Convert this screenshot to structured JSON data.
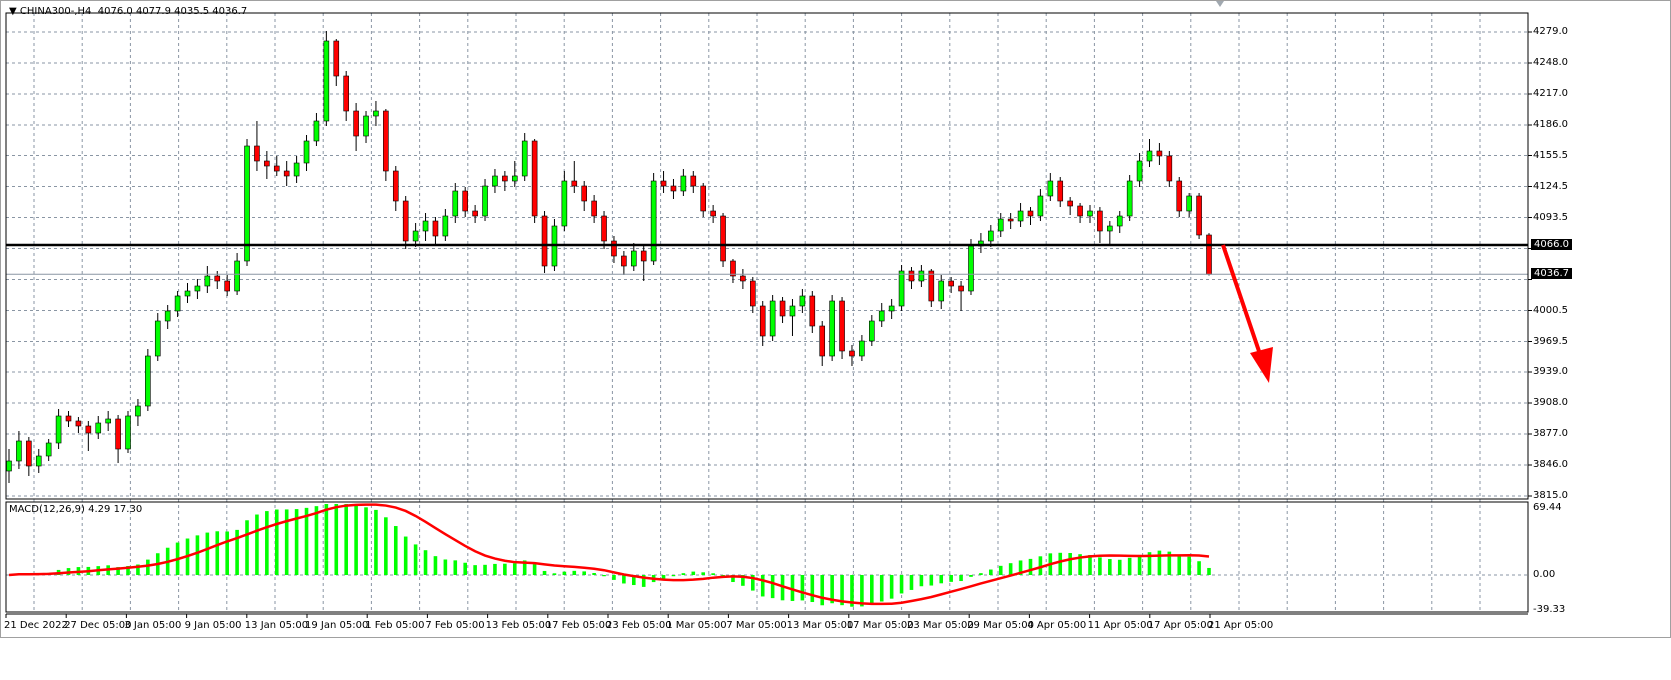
{
  "header": {
    "symbol": "CHINA300-,H4",
    "ohlc": "4076.0 4077.9 4035.5 4036.7",
    "menu_icon": "triangle-down-icon"
  },
  "price_axis": {
    "labels": [
      "4279.0",
      "4248.0",
      "4217.0",
      "4186.0",
      "4155.5",
      "4124.5",
      "4093.5",
      "4000.5",
      "3969.5",
      "3939.0",
      "3908.0",
      "3877.0",
      "3846.0",
      "3815.0"
    ],
    "grid_values": [
      4279.0,
      4248.0,
      4217.0,
      4186.0,
      4155.5,
      4124.5,
      4093.5,
      4062.5,
      4031.5,
      4000.5,
      3969.5,
      3939.0,
      3908.0,
      3877.0,
      3846.0,
      3815.0
    ],
    "range": [
      3815.0,
      4279.0
    ],
    "level_line": {
      "value": 4066.0,
      "label": "4066.0",
      "color": "#000000"
    },
    "last_price": {
      "value": 4036.7,
      "label": "4036.7"
    }
  },
  "macd": {
    "label": "MACD(12,26,9) 4.29 17.30",
    "params": [
      12,
      26,
      9
    ],
    "axis_labels": [
      "69.44",
      "0.00",
      "-39.33"
    ],
    "range": [
      -39.33,
      69.44
    ],
    "histogram_color": "#00ff00",
    "signal_color": "#ff0000"
  },
  "time_axis": [
    "21 Dec 2022",
    "27 Dec 05:00",
    "3 Jan 05:00",
    "9 Jan 05:00",
    "13 Jan 05:00",
    "19 Jan 05:00",
    "1 Feb 05:00",
    "7 Feb 05:00",
    "13 Feb 05:00",
    "17 Feb 05:00",
    "23 Feb 05:00",
    "1 Mar 05:00",
    "7 Mar 05:00",
    "13 Mar 05:00",
    "17 Mar 05:00",
    "23 Mar 05:00",
    "29 Mar 05:00",
    "4 Apr 05:00",
    "11 Apr 05:00",
    "17 Apr 05:00",
    "21 Apr 05:00"
  ],
  "colors": {
    "bull": "#00ff00",
    "bear": "#ff0000",
    "wick": "#000000",
    "grid": "#8a96a4",
    "arrow": "#ff0000"
  },
  "annotation": {
    "type": "arrow",
    "direction": "down",
    "color": "#ff0000"
  },
  "chart_data": {
    "type": "candlestick",
    "ohlc_order": [
      "open",
      "high",
      "low",
      "close"
    ],
    "candles": [
      [
        3840,
        3862,
        3828,
        3850
      ],
      [
        3850,
        3880,
        3842,
        3870
      ],
      [
        3870,
        3874,
        3835,
        3845
      ],
      [
        3845,
        3862,
        3838,
        3855
      ],
      [
        3855,
        3872,
        3850,
        3868
      ],
      [
        3868,
        3902,
        3862,
        3895
      ],
      [
        3895,
        3900,
        3884,
        3890
      ],
      [
        3890,
        3894,
        3878,
        3885
      ],
      [
        3885,
        3890,
        3860,
        3878
      ],
      [
        3878,
        3895,
        3872,
        3888
      ],
      [
        3888,
        3900,
        3880,
        3892
      ],
      [
        3892,
        3896,
        3848,
        3862
      ],
      [
        3862,
        3900,
        3858,
        3895
      ],
      [
        3895,
        3912,
        3885,
        3905
      ],
      [
        3905,
        3962,
        3900,
        3955
      ],
      [
        3955,
        3998,
        3950,
        3990
      ],
      [
        3990,
        4006,
        3982,
        4000
      ],
      [
        4000,
        4020,
        3994,
        4015
      ],
      [
        4015,
        4028,
        4008,
        4020
      ],
      [
        4020,
        4032,
        4012,
        4025
      ],
      [
        4025,
        4045,
        4018,
        4035
      ],
      [
        4035,
        4040,
        4022,
        4030
      ],
      [
        4030,
        4036,
        4015,
        4020
      ],
      [
        4020,
        4058,
        4016,
        4050
      ],
      [
        4050,
        4172,
        4045,
        4165
      ],
      [
        4165,
        4190,
        4140,
        4150
      ],
      [
        4150,
        4160,
        4132,
        4145
      ],
      [
        4145,
        4155,
        4135,
        4140
      ],
      [
        4140,
        4150,
        4125,
        4135
      ],
      [
        4135,
        4155,
        4128,
        4148
      ],
      [
        4148,
        4176,
        4140,
        4170
      ],
      [
        4170,
        4198,
        4165,
        4190
      ],
      [
        4190,
        4280,
        4185,
        4270
      ],
      [
        4270,
        4272,
        4225,
        4235
      ],
      [
        4235,
        4240,
        4190,
        4200
      ],
      [
        4200,
        4208,
        4160,
        4175
      ],
      [
        4175,
        4200,
        4168,
        4195
      ],
      [
        4195,
        4210,
        4185,
        4200
      ],
      [
        4200,
        4202,
        4130,
        4140
      ],
      [
        4140,
        4145,
        4100,
        4110
      ],
      [
        4110,
        4115,
        4062,
        4070
      ],
      [
        4070,
        4088,
        4064,
        4080
      ],
      [
        4080,
        4098,
        4070,
        4090
      ],
      [
        4090,
        4094,
        4066,
        4075
      ],
      [
        4075,
        4102,
        4070,
        4095
      ],
      [
        4095,
        4128,
        4088,
        4120
      ],
      [
        4120,
        4124,
        4094,
        4100
      ],
      [
        4100,
        4106,
        4088,
        4095
      ],
      [
        4095,
        4132,
        4090,
        4125
      ],
      [
        4125,
        4142,
        4118,
        4135
      ],
      [
        4135,
        4140,
        4120,
        4130
      ],
      [
        4130,
        4150,
        4124,
        4135
      ],
      [
        4135,
        4178,
        4130,
        4170
      ],
      [
        4170,
        4172,
        4088,
        4095
      ],
      [
        4095,
        4100,
        4038,
        4045
      ],
      [
        4045,
        4092,
        4040,
        4085
      ],
      [
        4085,
        4140,
        4080,
        4130
      ],
      [
        4130,
        4150,
        4118,
        4125
      ],
      [
        4125,
        4130,
        4100,
        4110
      ],
      [
        4110,
        4116,
        4088,
        4095
      ],
      [
        4095,
        4100,
        4062,
        4070
      ],
      [
        4070,
        4075,
        4048,
        4055
      ],
      [
        4055,
        4060,
        4036,
        4045
      ],
      [
        4045,
        4068,
        4040,
        4060
      ],
      [
        4060,
        4066,
        4030,
        4050
      ],
      [
        4050,
        4138,
        4046,
        4130
      ],
      [
        4130,
        4140,
        4118,
        4125
      ],
      [
        4125,
        4132,
        4112,
        4120
      ],
      [
        4120,
        4142,
        4115,
        4135
      ],
      [
        4135,
        4140,
        4118,
        4125
      ],
      [
        4125,
        4128,
        4094,
        4100
      ],
      [
        4100,
        4106,
        4088,
        4095
      ],
      [
        4095,
        4098,
        4044,
        4050
      ],
      [
        4050,
        4052,
        4028,
        4035
      ],
      [
        4035,
        4042,
        4022,
        4030
      ],
      [
        4030,
        4034,
        3998,
        4005
      ],
      [
        4005,
        4010,
        3965,
        3975
      ],
      [
        3975,
        4016,
        3970,
        4010
      ],
      [
        4010,
        4014,
        3988,
        3995
      ],
      [
        3995,
        4012,
        3975,
        4005
      ],
      [
        4005,
        4022,
        3998,
        4015
      ],
      [
        4015,
        4020,
        3978,
        3985
      ],
      [
        3985,
        3990,
        3945,
        3955
      ],
      [
        3955,
        4016,
        3950,
        4010
      ],
      [
        4010,
        4014,
        3952,
        3960
      ],
      [
        3960,
        3966,
        3945,
        3955
      ],
      [
        3955,
        3976,
        3950,
        3970
      ],
      [
        3970,
        3996,
        3965,
        3990
      ],
      [
        3990,
        4008,
        3984,
        4000
      ],
      [
        4000,
        4012,
        3992,
        4005
      ],
      [
        4005,
        4046,
        4000,
        4040
      ],
      [
        4040,
        4044,
        4022,
        4030
      ],
      [
        4030,
        4046,
        4024,
        4040
      ],
      [
        4040,
        4042,
        4004,
        4010
      ],
      [
        4010,
        4036,
        4002,
        4030
      ],
      [
        4030,
        4034,
        4018,
        4025
      ],
      [
        4025,
        4030,
        4000,
        4020
      ],
      [
        4020,
        4072,
        4016,
        4065
      ],
      [
        4065,
        4078,
        4058,
        4070
      ],
      [
        4070,
        4086,
        4064,
        4080
      ],
      [
        4080,
        4098,
        4074,
        4092
      ],
      [
        4092,
        4098,
        4082,
        4090
      ],
      [
        4090,
        4108,
        4084,
        4100
      ],
      [
        4100,
        4104,
        4086,
        4095
      ],
      [
        4095,
        4122,
        4090,
        4115
      ],
      [
        4115,
        4138,
        4110,
        4130
      ],
      [
        4130,
        4134,
        4104,
        4110
      ],
      [
        4110,
        4114,
        4096,
        4105
      ],
      [
        4105,
        4108,
        4088,
        4095
      ],
      [
        4095,
        4106,
        4088,
        4100
      ],
      [
        4100,
        4104,
        4068,
        4080
      ],
      [
        4080,
        4090,
        4066,
        4085
      ],
      [
        4085,
        4100,
        4078,
        4095
      ],
      [
        4095,
        4136,
        4090,
        4130
      ],
      [
        4130,
        4158,
        4124,
        4150
      ],
      [
        4150,
        4172,
        4144,
        4160
      ],
      [
        4160,
        4168,
        4146,
        4155
      ],
      [
        4155,
        4160,
        4124,
        4130
      ],
      [
        4130,
        4134,
        4094,
        4100
      ],
      [
        4100,
        4118,
        4094,
        4115
      ],
      [
        4115,
        4118,
        4072,
        4076
      ],
      [
        4076.0,
        4077.9,
        4035.5,
        4036.7
      ]
    ]
  }
}
